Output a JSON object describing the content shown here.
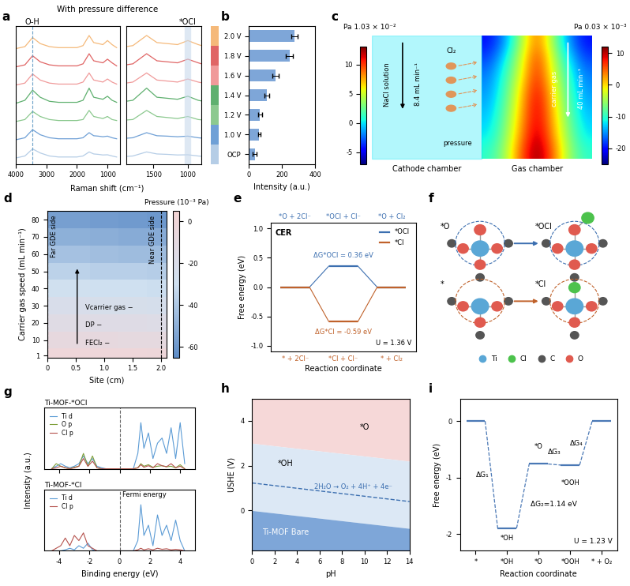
{
  "chart_data": [
    {
      "panel_label": "a",
      "type": "line",
      "title": "With pressure difference",
      "xlabel": "Raman shift (cm⁻¹)",
      "annotations": [
        "O-H",
        "*OCl"
      ],
      "annotation_x": [
        3450,
        1000
      ],
      "x": [
        4000,
        3700,
        3450,
        3200,
        2900,
        2600,
        2300,
        2000,
        1800,
        1600,
        1450,
        1300,
        1150,
        1000,
        850,
        700
      ],
      "xlim": [
        4000,
        600
      ],
      "xticks": [
        4000,
        3000,
        2000,
        1000
      ],
      "inset_xlim": [
        1900,
        800
      ],
      "inset_xticks": [
        1500,
        1000
      ],
      "ylim": [
        -0.2,
        6.6
      ],
      "tick_labels": "x",
      "series": [
        {
          "name": "OCP",
          "color": "#b5cde6",
          "values": [
            0.1,
            0.2,
            0.55,
            0.35,
            0.2,
            0.15,
            0.15,
            0.15,
            0.2,
            0.4,
            0.3,
            0.28,
            0.25,
            0.26,
            0.2,
            0.15
          ]
        },
        {
          "name": "1.0 V",
          "color": "#6fa0d6",
          "values": [
            1.0,
            1.1,
            1.5,
            1.25,
            1.1,
            1.05,
            1.05,
            1.05,
            1.1,
            1.35,
            1.2,
            1.18,
            1.15,
            1.18,
            1.1,
            1.05
          ]
        },
        {
          "name": "1.2 V",
          "color": "#8cc98f",
          "values": [
            1.9,
            2.0,
            2.4,
            2.15,
            2.0,
            1.95,
            1.95,
            1.95,
            2.0,
            2.45,
            2.15,
            2.1,
            2.05,
            2.15,
            2.0,
            1.95
          ]
        },
        {
          "name": "1.4 V",
          "color": "#5fb06f",
          "values": [
            2.8,
            2.95,
            3.45,
            3.1,
            2.9,
            2.85,
            2.85,
            2.85,
            2.95,
            3.55,
            3.1,
            3.05,
            3.0,
            3.15,
            2.95,
            2.85
          ]
        },
        {
          "name": "1.6 V",
          "color": "#f09a9a",
          "values": [
            3.7,
            3.8,
            4.25,
            3.95,
            3.8,
            3.75,
            3.75,
            3.75,
            3.85,
            4.3,
            3.95,
            3.9,
            3.85,
            4.0,
            3.85,
            3.75
          ]
        },
        {
          "name": "1.8 V",
          "color": "#e06565",
          "values": [
            4.6,
            4.7,
            5.15,
            4.85,
            4.7,
            4.65,
            4.65,
            4.65,
            4.75,
            5.25,
            4.9,
            4.85,
            4.8,
            4.98,
            4.8,
            4.65
          ]
        },
        {
          "name": "2.0 V",
          "color": "#f5b97a",
          "values": [
            5.5,
            5.6,
            6.05,
            5.75,
            5.6,
            5.55,
            5.55,
            5.55,
            5.65,
            6.15,
            5.8,
            5.75,
            5.7,
            5.9,
            5.7,
            5.55
          ]
        }
      ]
    },
    {
      "panel_label": "b",
      "type": "bar",
      "orientation": "horizontal",
      "categories": [
        "OCP",
        "1.0 V",
        "1.2 V",
        "1.4 V",
        "1.6 V",
        "1.8 V",
        "2.0 V"
      ],
      "values": [
        35,
        62,
        68,
        110,
        162,
        245,
        275
      ],
      "errors": [
        10,
        8,
        10,
        15,
        18,
        22,
        20
      ],
      "color": "#7ea6d8",
      "xlabel": "Intensity (a.u.)",
      "xlim": [
        0,
        400
      ],
      "xticks": [
        0,
        200,
        400
      ]
    },
    {
      "panel_label": "c",
      "type": "diagram",
      "left_scale_label": "Pa 1.03 × 10⁻²",
      "right_scale_label": "Pa 0.03 × 10⁻³",
      "left_colorbar": {
        "range": [
          -7,
          13
        ],
        "ticks": [
          -5,
          0,
          5,
          10
        ]
      },
      "right_colorbar": {
        "range": [
          -25,
          12
        ],
        "ticks": [
          -20,
          -10,
          0,
          10
        ]
      },
      "cathode_value": 0,
      "field": [
        [
          -20,
          -15,
          -5,
          5,
          -5,
          -15,
          -20
        ],
        [
          -18,
          -12,
          -3,
          7,
          -3,
          -12,
          -18
        ],
        [
          -16,
          -10,
          -2,
          8,
          -2,
          -10,
          -16
        ],
        [
          -15,
          -9,
          0,
          9,
          0,
          -9,
          -15
        ],
        [
          -14,
          -8,
          1,
          10,
          1,
          -8,
          -14
        ],
        [
          -13,
          -7,
          2,
          10,
          2,
          -7,
          -13
        ],
        [
          -12,
          -6,
          3,
          11,
          3,
          -6,
          -12
        ],
        [
          -10,
          -5,
          5,
          12,
          5,
          -5,
          -10
        ]
      ],
      "texts": {
        "solution": "NaCl solution",
        "solution_flow": "8.4 mL min⁻¹",
        "gas": "carrier gas",
        "gas_flow": "40 mL min⁻¹",
        "product": "Cl₂",
        "pressure": "pressure",
        "left_chamber": "Cathode chamber",
        "right_chamber": "Gas chamber"
      }
    },
    {
      "panel_label": "d",
      "type": "heatmap",
      "x": [
        0,
        0.5,
        1.0,
        1.5,
        2.0
      ],
      "y": [
        1,
        10,
        20,
        30,
        40,
        50,
        60,
        70,
        80
      ],
      "cells": [
        [
          -1,
          -1,
          -1,
          -1,
          -2
        ],
        [
          -8,
          -8,
          -8,
          -9,
          -9
        ],
        [
          -15,
          -15,
          -16,
          -16,
          -17
        ],
        [
          -22,
          -22,
          -23,
          -23,
          -24
        ],
        [
          -29,
          -29,
          -30,
          -30,
          -31
        ],
        [
          -36,
          -36,
          -37,
          -37,
          -38
        ],
        [
          -43,
          -43,
          -44,
          -45,
          -45
        ],
        [
          -50,
          -50,
          -51,
          -52,
          -52
        ],
        [
          -57,
          -57,
          -58,
          -59,
          -60
        ]
      ],
      "xlabel": "Site (cm)",
      "ylabel": "Carrier gas speed (mL min⁻¹)",
      "xlim": [
        0,
        2.1
      ],
      "xticks": [
        0,
        0.5,
        1.0,
        1.5,
        2.0
      ],
      "ylim": [
        0,
        85
      ],
      "yticks": [
        1,
        10,
        20,
        30,
        40,
        50,
        60,
        70,
        80
      ],
      "colorbar": {
        "label": "Pressure (10⁻³ Pa)",
        "range": [
          -65,
          5
        ],
        "ticks": [
          -60,
          -40,
          -20,
          0
        ]
      },
      "texts": [
        "Far GDE side",
        "Near GDE side"
      ],
      "trend_texts": [
        "Vcarrier gas −",
        "DP −",
        "FECl₂ −"
      ]
    },
    {
      "panel_label": "e",
      "type": "line",
      "title": "CER",
      "series": [
        {
          "name": "*OCl",
          "color": "#3c6fb0",
          "values": [
            0,
            0.36,
            0
          ]
        },
        {
          "name": "*Cl",
          "color": "#c0622b",
          "values": [
            0,
            -0.59,
            0
          ]
        }
      ],
      "top_labels": [
        "*O + 2Cl⁻",
        "*OCl + Cl⁻",
        "*O + Cl₂"
      ],
      "bottom_labels": [
        "* + 2Cl⁻",
        "*Cl + Cl⁻",
        "* + Cl₂"
      ],
      "annotations": [
        "ΔG*OCl = 0.36 eV",
        "ΔG*Cl = -0.59 eV",
        "U = 1.36 V"
      ],
      "xlabel": "Reaction coordinate",
      "ylabel": "Free energy (eV)",
      "ylim": [
        -1.1,
        1.1
      ],
      "yticks": [
        -1.0,
        -0.5,
        0.0,
        0.5,
        1.0
      ],
      "legend": "upper right",
      "tick_labels": "y"
    },
    {
      "panel_label": "f",
      "type": "diagram",
      "structures": [
        "*O",
        "*OCl",
        "*",
        "*Cl"
      ],
      "elements": [
        {
          "name": "Ti",
          "color": "#5aa7d6"
        },
        {
          "name": "Cl",
          "color": "#4cc24c"
        },
        {
          "name": "C",
          "color": "#555555"
        },
        {
          "name": "O",
          "color": "#e05a4f"
        }
      ],
      "legend": "lower center"
    },
    {
      "panel_label": "g",
      "type": "line",
      "xlabel": "Binding energy (eV)",
      "ylabel": "Intensity (a.u.)",
      "xlim": [
        -5,
        5
      ],
      "xticks": [
        -4,
        -2,
        0,
        2,
        4
      ],
      "fermi_x": 0,
      "fermi_label": "Fermi energy",
      "tick_labels": "x",
      "legend": "upper left",
      "x": [
        -4.5,
        -4.2,
        -3.9,
        -3.6,
        -3.3,
        -3.0,
        -2.7,
        -2.4,
        -2.1,
        -1.8,
        -1.5,
        -1.2,
        -0.9,
        0.9,
        1.2,
        1.4,
        1.6,
        1.9,
        2.2,
        2.5,
        2.8,
        3.1,
        3.4,
        3.7,
        4.0,
        4.3
      ],
      "panels": [
        {
          "title": "Ti-MOF-*OCl",
          "ylim": [
            0,
            1.2
          ],
          "series": [
            {
              "name": "Ti d",
              "color": "#5b9bd5",
              "values": [
                0,
                0.05,
                0.1,
                0.05,
                0.02,
                0.05,
                0.1,
                0.25,
                0.1,
                0.2,
                0.05,
                0.02,
                0,
                0,
                0.3,
                0.9,
                0.4,
                0.7,
                0.2,
                0.5,
                0.6,
                0.3,
                0.8,
                0.2,
                0.9,
                0.1
              ]
            },
            {
              "name": "O p",
              "color": "#7f9f3a",
              "values": [
                0,
                0.1,
                0.05,
                0.02,
                0,
                0.03,
                0.05,
                0.3,
                0.05,
                0.25,
                0.02,
                0,
                0,
                0,
                0.02,
                0.1,
                0.05,
                0.08,
                0.03,
                0.05,
                0.06,
                0.04,
                0.05,
                0.02,
                0.08,
                0
              ]
            },
            {
              "name": "Cl p",
              "color": "#b5524d",
              "values": [
                0,
                0.02,
                0.05,
                0.02,
                0,
                0.02,
                0.05,
                0.2,
                0.05,
                0.15,
                0.02,
                0,
                0,
                0,
                0.02,
                0.08,
                0.03,
                0.06,
                0.02,
                0.1,
                0.06,
                0.04,
                0.1,
                0.02,
                0.05,
                0
              ]
            }
          ]
        },
        {
          "title": "Ti-MOF-*Cl",
          "ylim": [
            0,
            1.2
          ],
          "series": [
            {
              "name": "Ti d",
              "color": "#5b9bd5",
              "values": [
                0,
                0,
                0,
                0.02,
                0.05,
                0.02,
                0.1,
                0.05,
                0.15,
                0.02,
                0,
                0,
                0,
                0,
                0.2,
                0.9,
                0.3,
                0.5,
                0.1,
                0.7,
                0.3,
                0.5,
                0.2,
                0.6,
                0.2,
                0
              ]
            },
            {
              "name": "Cl p",
              "color": "#b5524d",
              "values": [
                0,
                0.05,
                0.1,
                0.25,
                0.1,
                0.3,
                0.2,
                0.35,
                0.1,
                0.05,
                0,
                0,
                0,
                0,
                0.02,
                0.05,
                0.02,
                0.04,
                0.02,
                0.05,
                0.03,
                0.04,
                0.02,
                0.03,
                0.02,
                0
              ]
            }
          ]
        }
      ]
    },
    {
      "panel_label": "h",
      "type": "area",
      "x": [
        0,
        14
      ],
      "boundaries": [
        [
          3.0,
          2.2
        ],
        [
          0.0,
          -0.8
        ]
      ],
      "regions": [
        {
          "name": "*O",
          "color": "#f6d8d8"
        },
        {
          "name": "*OH",
          "color": "#dce8f5"
        },
        {
          "name": "Ti-MOF Bare",
          "color": "#7ea6d8"
        }
      ],
      "reference": {
        "name": "2H₂O → O₂ + 4H⁺ + 4e⁻",
        "values": [
          1.23,
          0.4
        ],
        "line_style": "dashed"
      },
      "xlabel": "pH",
      "ylabel": "USHE (V)",
      "xlim": [
        0,
        14
      ],
      "xticks": [
        0,
        2,
        4,
        6,
        8,
        10,
        12,
        14
      ],
      "ylim": [
        -1.8,
        5
      ],
      "yticks": [
        0,
        2,
        4
      ]
    },
    {
      "panel_label": "i",
      "type": "line",
      "categories": [
        "*",
        "*OH",
        "*O",
        "*OOH",
        "* + O₂"
      ],
      "values": [
        0,
        -1.9,
        -0.76,
        -0.78,
        0
      ],
      "color": "#4a78b5",
      "line_style": "dashed",
      "annotations": [
        "ΔG₁",
        "ΔG₂=1.14 eV",
        "ΔG₃",
        "ΔG₄",
        "U = 1.23 V"
      ],
      "structure_labels": [
        "*OH",
        "*O",
        "*OOH"
      ],
      "xlabel": "Reaction coordinate",
      "ylabel": "Free energy (eV)",
      "ylim": [
        -2.3,
        0.4
      ],
      "yticks": [
        -2,
        -1,
        0
      ]
    }
  ]
}
